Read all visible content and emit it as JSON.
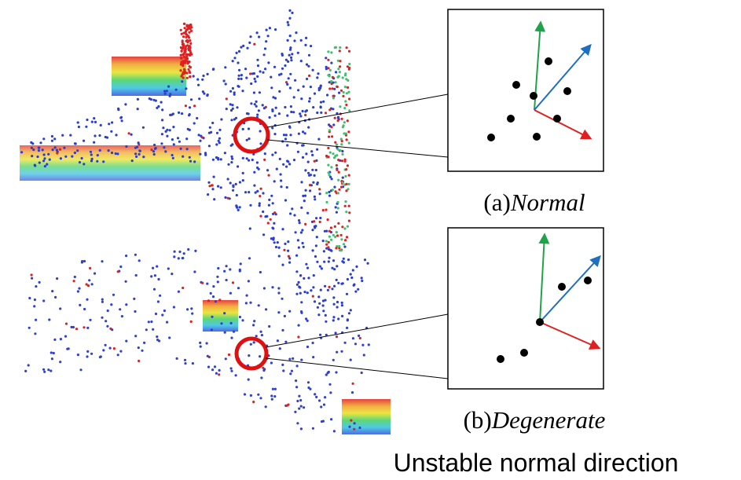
{
  "panels": [
    {
      "tag": "(a)",
      "name": "Normal"
    },
    {
      "tag": "(b)",
      "name": "Degenerate"
    }
  ],
  "caption": "Unstable normal direction"
}
